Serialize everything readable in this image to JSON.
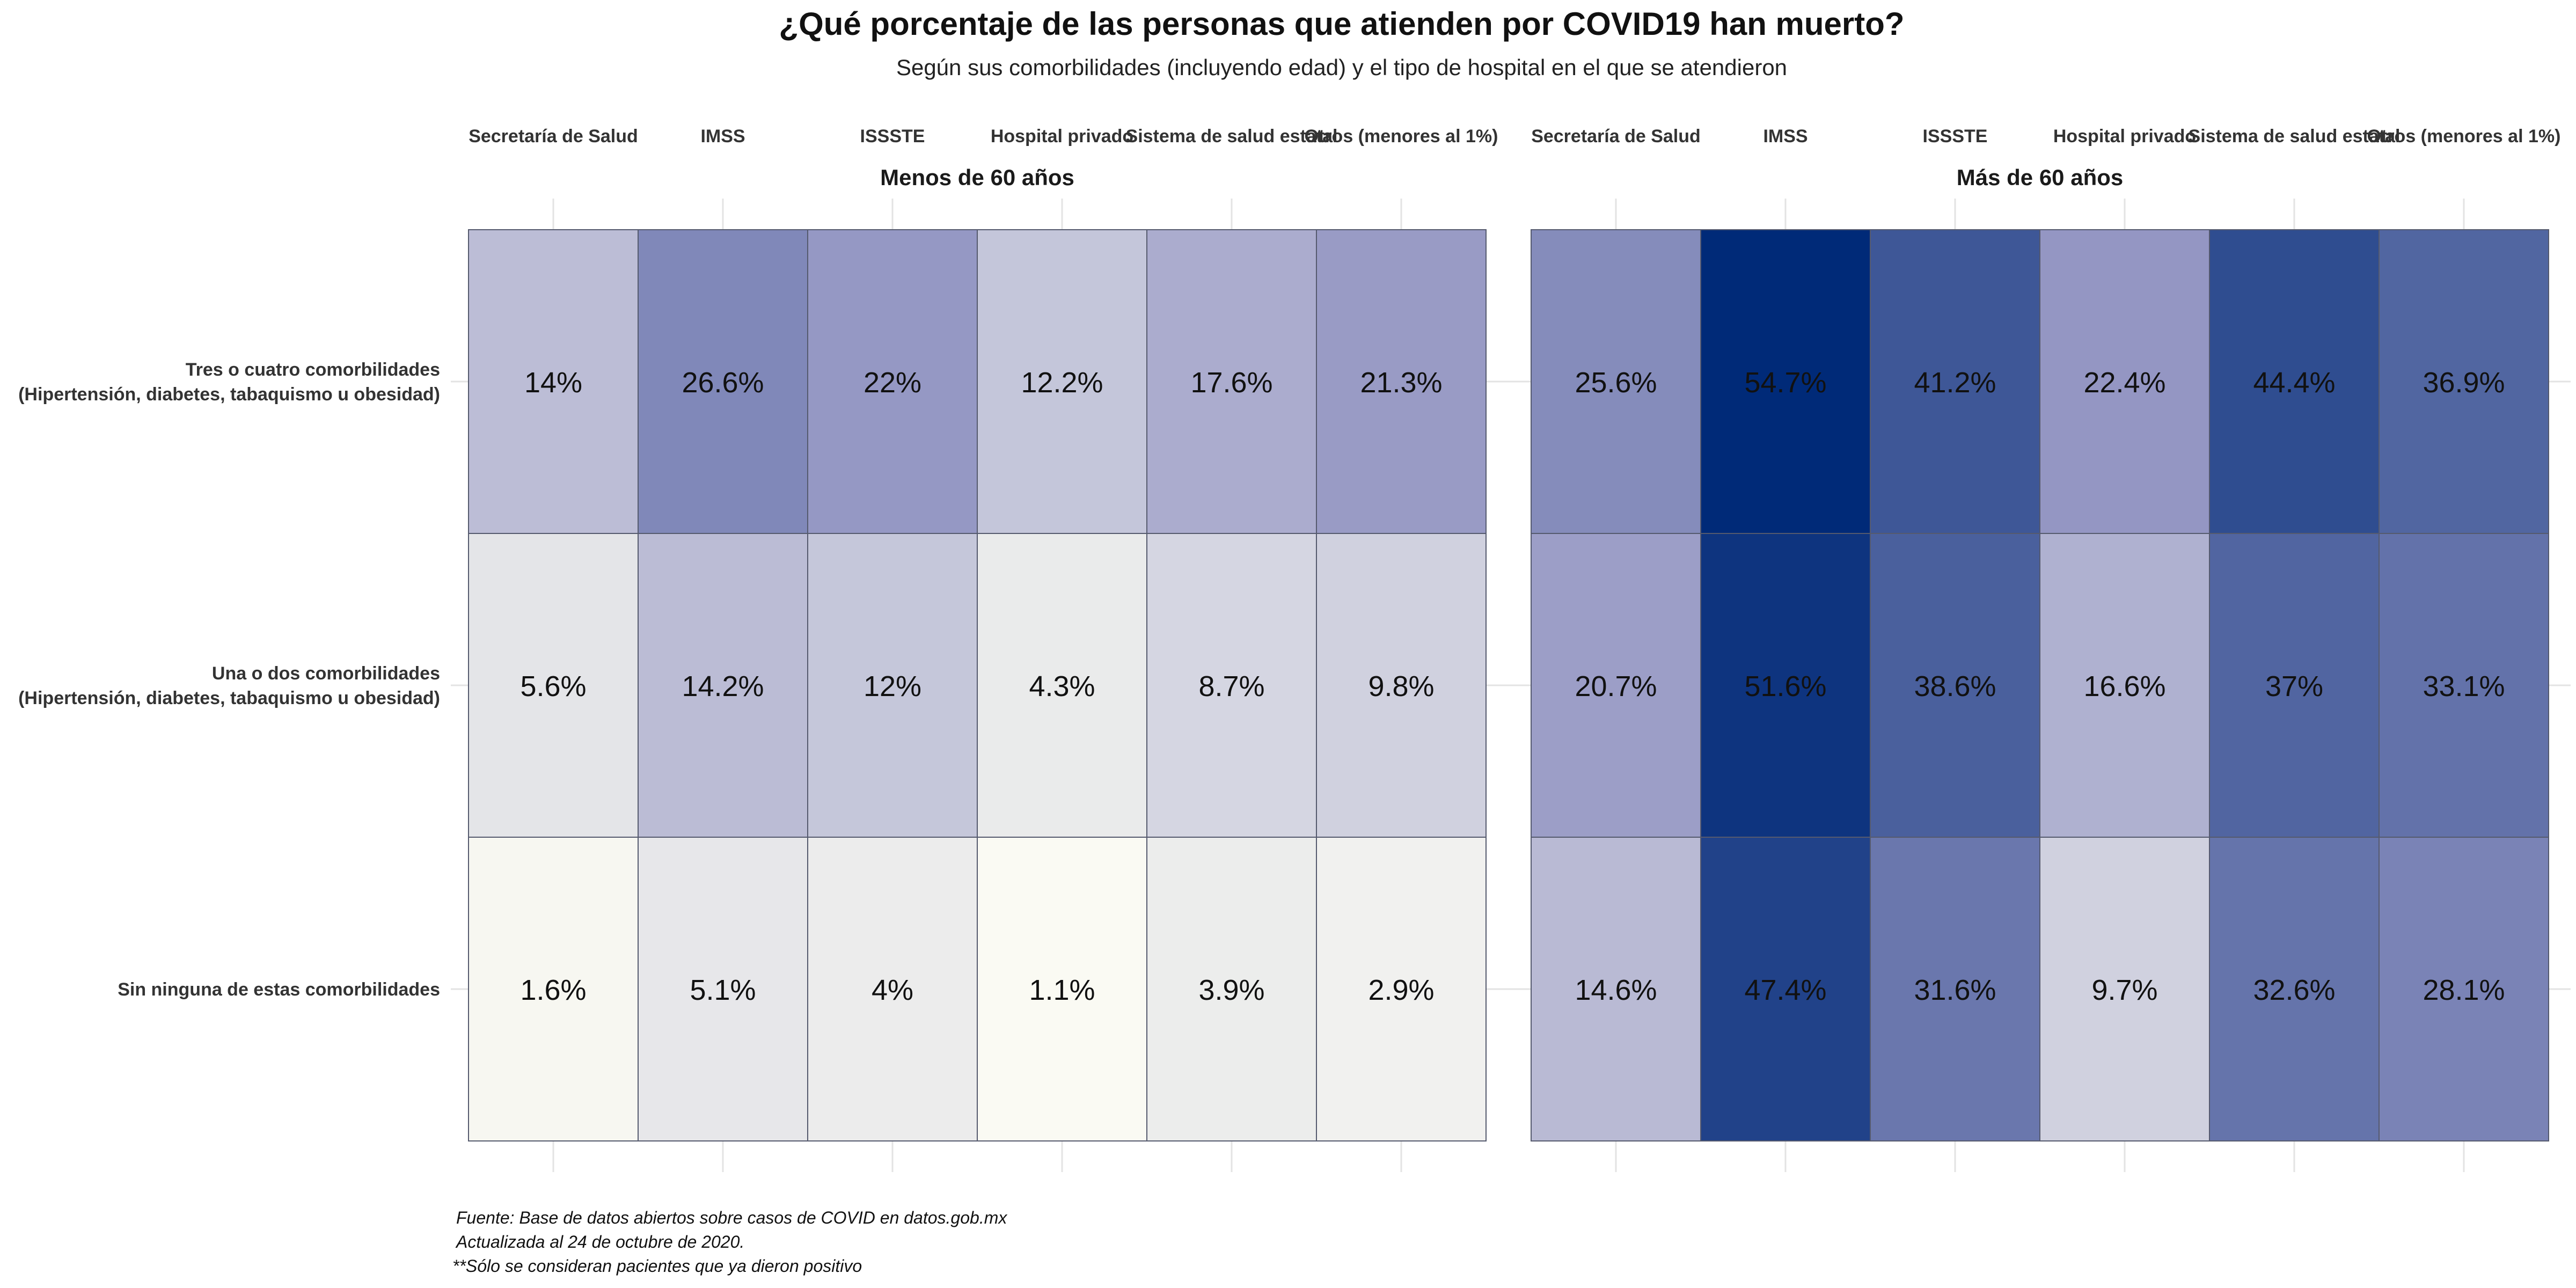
{
  "chart_data": {
    "type": "heatmap",
    "title": "¿Qué porcentaje de las personas que atienden por COVID19 han muerto?",
    "subtitle": "Según sus comorbilidades (incluyendo edad) y el tipo de hospital en el que se atendieron",
    "facets": [
      "Menos de 60 años",
      "Más de 60 años"
    ],
    "columns": [
      "Secretaría de Salud",
      "IMSS",
      "ISSSTE",
      "Hospital privado",
      "Sistema de salud estatal",
      "Otros (menores al 1%)"
    ],
    "rows": [
      [
        "Tres o cuatro comorbilidades",
        "(Hipertensión, diabetes, tabaquismo u obesidad)"
      ],
      [
        "Una o dos comorbilidades",
        "(Hipertensión, diabetes, tabaquismo u obesidad)"
      ],
      [
        "Sin ninguna de estas comorbilidades"
      ]
    ],
    "values": [
      [
        [
          14,
          26.6,
          22,
          12.2,
          17.6,
          21.3
        ],
        [
          5.6,
          14.2,
          12,
          4.3,
          8.7,
          9.8
        ],
        [
          1.6,
          5.1,
          4,
          1.1,
          3.9,
          2.9
        ]
      ],
      [
        [
          25.6,
          54.7,
          41.2,
          22.4,
          44.4,
          36.9
        ],
        [
          20.7,
          51.6,
          38.6,
          16.6,
          37,
          33.1
        ],
        [
          14.6,
          47.4,
          31.6,
          9.7,
          32.6,
          28.1
        ]
      ]
    ],
    "value_suffix": "%",
    "color_low": "#fffff5",
    "color_high": "#002a78",
    "caption": [
      "Fuente: Base de datos abiertos sobre casos de COVID en datos.gob.mx",
      "Actualizada al 24 de octubre de 2020.",
      "**Sólo se consideran pacientes que ya dieron positivo"
    ]
  }
}
